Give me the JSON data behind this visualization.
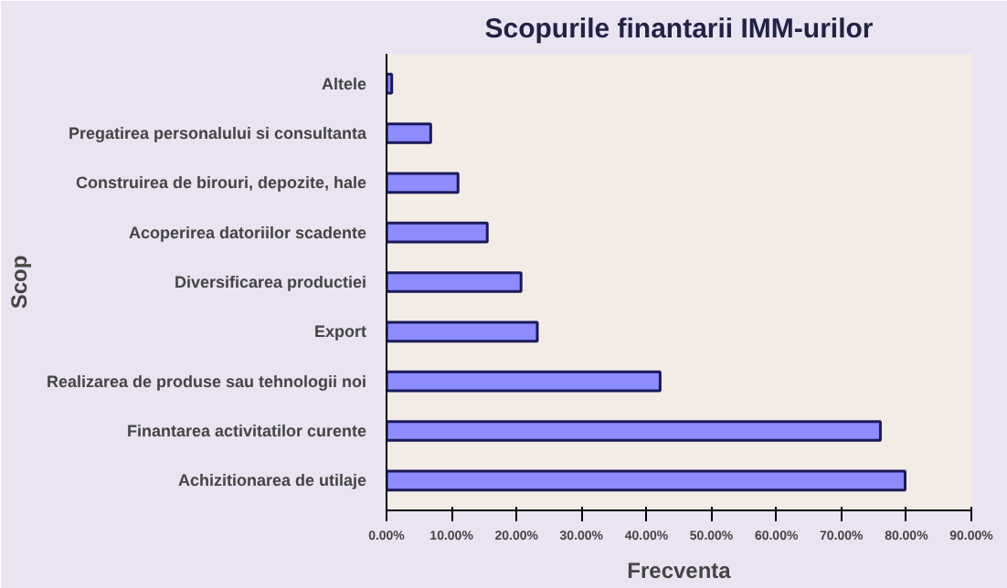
{
  "chart_data": {
    "type": "bar",
    "orientation": "horizontal",
    "title": "Scopurile finantarii IMM-urilor",
    "xlabel": "Frecventa",
    "ylabel": "Scop",
    "categories": [
      "Altele",
      "Pregatirea personalului si consultanta",
      "Construirea de birouri, depozite, hale",
      "Acoperirea datoriilor scadente",
      "Diversificarea productiei",
      "Export",
      "Realizarea de produse sau tehnologii noi",
      "Finantarea activitatilor curente",
      "Achizitionarea de utilaje"
    ],
    "values": [
      0.8,
      6.8,
      11.0,
      15.5,
      20.7,
      23.2,
      42.1,
      76.0,
      79.8
    ],
    "color": "#8c8cff",
    "xlim": [
      0,
      90
    ],
    "xticks": [
      {
        "value": 0,
        "label": "0.00%"
      },
      {
        "value": 10,
        "label": "10.00%"
      },
      {
        "value": 20,
        "label": "20.00%"
      },
      {
        "value": 30,
        "label": "30.00%"
      },
      {
        "value": 40,
        "label": "40.00%"
      },
      {
        "value": 50,
        "label": "50.00%"
      },
      {
        "value": 60,
        "label": "60.00%"
      },
      {
        "value": 70,
        "label": "70.00%"
      },
      {
        "value": 80,
        "label": "80.00%"
      },
      {
        "value": 90,
        "label": "90.00%"
      }
    ],
    "grid": false
  }
}
